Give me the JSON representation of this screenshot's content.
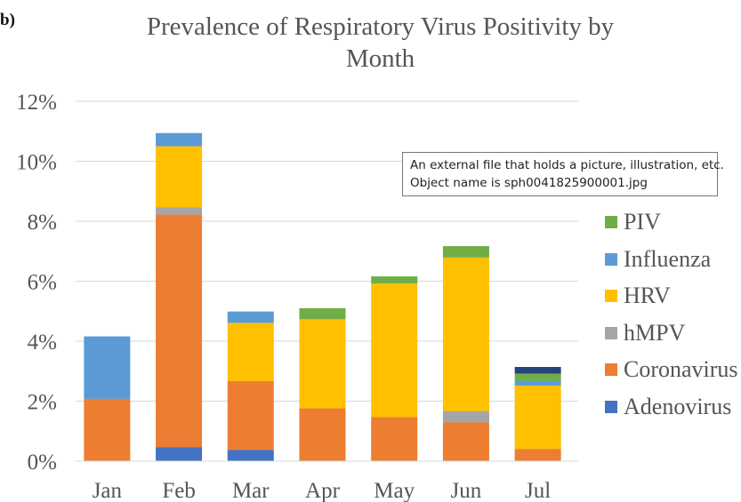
{
  "panel_label": "b)",
  "tooltip": {
    "line1": "An external file that holds a picture, illustration, etc.",
    "line2": "Object name is sph0041825900001.jpg"
  },
  "chart_data": {
    "type": "bar",
    "stacked": true,
    "title": "Prevalence of Respiratory Virus Positivity by Month",
    "title_lines": [
      "Prevalence of Respiratory Virus Positivity by",
      "Month"
    ],
    "xlabel": "",
    "ylabel": "",
    "categories": [
      "Jan",
      "Feb",
      "Mar",
      "Apr",
      "May",
      "Jun",
      "Jul"
    ],
    "ylim": [
      0,
      12
    ],
    "yticks": [
      {
        "value": 0,
        "label": "0%"
      },
      {
        "value": 2,
        "label": "2%"
      },
      {
        "value": 4,
        "label": "4%"
      },
      {
        "value": 6,
        "label": "6%"
      },
      {
        "value": 8,
        "label": "8%"
      },
      {
        "value": 10,
        "label": "10%"
      },
      {
        "value": 12,
        "label": "12%"
      }
    ],
    "grid": true,
    "legend_position": "right",
    "series": [
      {
        "name": "Adenovirus",
        "color": "#4472C4",
        "values": [
          0,
          0.47,
          0.38,
          0,
          0,
          0,
          0
        ]
      },
      {
        "name": "Coronavirus",
        "color": "#ED7D31",
        "values": [
          2.08,
          7.75,
          2.29,
          1.76,
          1.47,
          1.29,
          0.41
        ]
      },
      {
        "name": "hMPV",
        "color": "#A5A5A5",
        "values": [
          0,
          0.25,
          0,
          0,
          0,
          0.38,
          0
        ]
      },
      {
        "name": "HRV",
        "color": "#FFC000",
        "values": [
          0,
          2.03,
          1.94,
          2.97,
          4.45,
          5.12,
          2.11
        ]
      },
      {
        "name": "Influenza",
        "color": "#5B9BD5",
        "values": [
          2.08,
          0.44,
          0.38,
          0,
          0,
          0,
          0.16
        ]
      },
      {
        "name": "PIV",
        "color": "#70AD47",
        "values": [
          0,
          0,
          0,
          0.37,
          0.24,
          0.38,
          0.24
        ]
      },
      {
        "name": "",
        "color": "#264478",
        "values": [
          0,
          0,
          0,
          0,
          0,
          0,
          0.22
        ]
      }
    ],
    "legend_order": [
      "PIV",
      "Influenza",
      "HRV",
      "hMPV",
      "Coronavirus",
      "Adenovirus"
    ]
  }
}
